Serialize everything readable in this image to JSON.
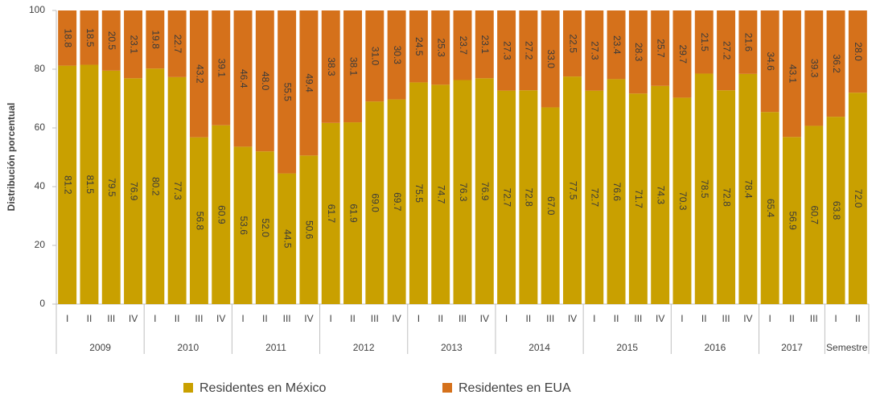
{
  "chart_data": {
    "type": "stacked_bar",
    "y_label": "Distribución porcentual",
    "groups": [
      {
        "label": "2009",
        "categories": [
          "I",
          "II",
          "III",
          "IV"
        ]
      },
      {
        "label": "2010",
        "categories": [
          "I",
          "II",
          "III",
          "IV"
        ]
      },
      {
        "label": "2011",
        "categories": [
          "I",
          "II",
          "III",
          "IV"
        ]
      },
      {
        "label": "2012",
        "categories": [
          "I",
          "II",
          "III",
          "IV"
        ]
      },
      {
        "label": "2013",
        "categories": [
          "I",
          "II",
          "III",
          "IV"
        ]
      },
      {
        "label": "2014",
        "categories": [
          "I",
          "II",
          "III",
          "IV"
        ]
      },
      {
        "label": "2015",
        "categories": [
          "I",
          "II",
          "III",
          "IV"
        ]
      },
      {
        "label": "2016",
        "categories": [
          "I",
          "II",
          "III",
          "IV"
        ]
      },
      {
        "label": "2017",
        "categories": [
          "I",
          "II",
          "III"
        ]
      },
      {
        "label": "Semestre",
        "categories": [
          "I",
          "II"
        ]
      }
    ],
    "series": [
      {
        "name": "Residentes en México",
        "color": "#c9a000",
        "values": [
          81.2,
          81.5,
          79.5,
          76.9,
          80.2,
          77.3,
          56.8,
          60.9,
          53.6,
          52.0,
          44.5,
          50.6,
          61.7,
          61.9,
          69.0,
          69.7,
          75.5,
          74.7,
          76.3,
          76.9,
          72.7,
          72.8,
          67.0,
          77.5,
          72.7,
          76.6,
          71.7,
          74.3,
          70.3,
          78.5,
          72.8,
          78.4,
          65.4,
          56.9,
          60.7,
          63.8,
          72.0
        ],
        "value_labels": [
          "81.2",
          "81.5",
          "79.5",
          "76.9",
          "80.2",
          "77.3",
          "56.8",
          "60.9",
          "53.6",
          "52.0",
          "44.5",
          "50.6",
          "61.7",
          "61.9",
          "69.0",
          "69.7",
          "75.5",
          "74.7",
          "76.3",
          "76.9",
          "72.7",
          "72.8",
          "67.0",
          "77.5",
          "72.7",
          "76.6",
          "71.7",
          "74.3",
          "70.3",
          "78.5",
          "72.8",
          "78.4",
          "65.4",
          "56.9",
          "60.7",
          "63.8",
          "72.0"
        ]
      },
      {
        "name": "Residentes en EUA",
        "color": "#d5711b",
        "values": [
          18.8,
          18.5,
          20.5,
          23.1,
          19.8,
          22.7,
          43.2,
          39.1,
          46.4,
          48.0,
          55.5,
          49.4,
          38.3,
          38.1,
          31.0,
          30.3,
          24.5,
          25.3,
          23.7,
          23.1,
          27.3,
          27.2,
          33.0,
          22.5,
          27.3,
          23.4,
          28.3,
          25.7,
          29.7,
          21.5,
          27.2,
          21.6,
          34.6,
          43.1,
          39.3,
          36.2,
          28.0
        ],
        "value_labels": [
          "18.8",
          "18.5",
          "20.5",
          "23.1",
          "19.8",
          "22.7",
          "43.2",
          "39.1",
          "46.4",
          "48.0",
          "55.5",
          "49.4",
          "38.3",
          "38.1",
          "31.0",
          "30.3",
          "24.5",
          "25.3",
          "23.7",
          "23.1",
          "27.3",
          "27.2",
          "33.0",
          "22.5",
          "27.3",
          "23.4",
          "28.3",
          "25.7",
          "29.7",
          "21.5",
          "27.2",
          "21.6",
          "34.6",
          "43.1",
          "39.3",
          "36.2",
          "28.0"
        ]
      }
    ],
    "ylim": [
      0,
      100
    ],
    "yticks": [
      0,
      20,
      40,
      60,
      80,
      100
    ],
    "grid": false,
    "legend": "bottom"
  }
}
